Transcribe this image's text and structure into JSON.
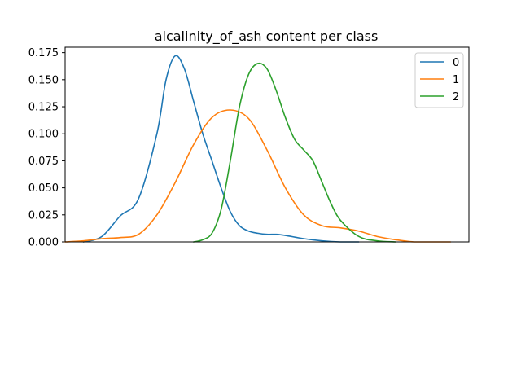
{
  "chart_data": {
    "type": "line",
    "title": "alcalinity_of_ash content per class",
    "xlabel": "",
    "ylabel": "",
    "x_range": [
      10,
      32
    ],
    "ylim": [
      0,
      0.18
    ],
    "yticks": [
      "0.000",
      "0.025",
      "0.050",
      "0.075",
      "0.100",
      "0.125",
      "0.150",
      "0.175"
    ],
    "ytick_values": [
      0,
      0.025,
      0.05,
      0.075,
      0.1,
      0.125,
      0.15,
      0.175
    ],
    "grid": false,
    "legend_position": "top-right",
    "series": [
      {
        "name": "0",
        "color": "#1f77b4",
        "x": [
          11.0,
          12.0,
          13.0,
          14.0,
          15.0,
          15.5,
          16.0,
          16.5,
          17.0,
          17.5,
          18.0,
          18.5,
          19.0,
          19.5,
          20.0,
          20.5,
          21.0,
          21.5,
          22.0,
          23.0,
          24.0,
          25.0,
          26.0
        ],
        "values": [
          0.0,
          0.005,
          0.024,
          0.04,
          0.1,
          0.15,
          0.172,
          0.16,
          0.13,
          0.1,
          0.075,
          0.05,
          0.028,
          0.015,
          0.01,
          0.008,
          0.007,
          0.007,
          0.006,
          0.003,
          0.001,
          0.0,
          0.0
        ]
      },
      {
        "name": "1",
        "color": "#ff7f0e",
        "x": [
          10.0,
          11.0,
          12.0,
          13.0,
          14.0,
          15.0,
          16.0,
          17.0,
          18.0,
          19.0,
          20.0,
          21.0,
          22.0,
          23.0,
          24.0,
          25.0,
          26.0,
          27.0,
          28.0,
          29.0,
          30.0,
          31.0
        ],
        "values": [
          0.0,
          0.001,
          0.003,
          0.004,
          0.007,
          0.025,
          0.055,
          0.09,
          0.115,
          0.122,
          0.114,
          0.085,
          0.05,
          0.025,
          0.015,
          0.013,
          0.01,
          0.005,
          0.002,
          0.0,
          0.0,
          0.0
        ]
      },
      {
        "name": "2",
        "color": "#2ca02c",
        "x": [
          17.0,
          17.5,
          18.0,
          18.5,
          19.0,
          19.5,
          20.0,
          20.5,
          21.0,
          21.5,
          22.0,
          22.5,
          23.0,
          23.5,
          24.0,
          24.5,
          25.0,
          26.0,
          27.0,
          28.0
        ],
        "values": [
          0.0,
          0.002,
          0.008,
          0.03,
          0.075,
          0.125,
          0.155,
          0.165,
          0.16,
          0.14,
          0.115,
          0.095,
          0.085,
          0.075,
          0.055,
          0.035,
          0.02,
          0.005,
          0.001,
          0.0
        ]
      }
    ]
  }
}
